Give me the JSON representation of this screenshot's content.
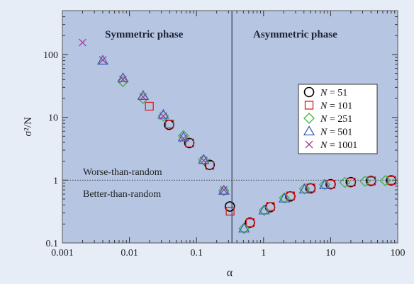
{
  "chart_data": {
    "type": "scatter",
    "xscale": "log",
    "yscale": "log",
    "xlim": [
      0.001,
      100
    ],
    "ylim": [
      0.1,
      500
    ],
    "xticks": [
      "0.001",
      "0.01",
      "0.1",
      "1",
      "10",
      "100"
    ],
    "yticks": [
      "0.1",
      "1",
      "10",
      "100"
    ],
    "xlabel": "α",
    "ylabel": "σ²/N",
    "alpha_c": 0.3374,
    "random_level": 1,
    "phase_labels": {
      "left": "Symmetric phase",
      "right": "Asymmetric phase"
    },
    "annotations": {
      "upper": "Worse-than-random",
      "lower": "Better-than-random"
    },
    "colors": {
      "panel": "#b5c5e2",
      "background": "#e6edf6",
      "accent": "#1b2233"
    },
    "series": [
      {
        "name": "N = 51",
        "marker": "circle",
        "color": "#000000",
        "points": [
          [
            0.039,
            7.6
          ],
          [
            0.078,
            3.9
          ],
          [
            0.157,
            1.75
          ],
          [
            0.314,
            0.38
          ],
          [
            0.627,
            0.21
          ],
          [
            1.25,
            0.37
          ],
          [
            2.5,
            0.55
          ],
          [
            5,
            0.74
          ],
          [
            10,
            0.86
          ],
          [
            20,
            0.93
          ],
          [
            40,
            0.97
          ],
          [
            80,
            0.99
          ]
        ]
      },
      {
        "name": "N = 101",
        "marker": "square",
        "color": "#d62020",
        "points": [
          [
            0.0198,
            15
          ],
          [
            0.0396,
            7.8
          ],
          [
            0.079,
            3.9
          ],
          [
            0.158,
            1.72
          ],
          [
            0.317,
            0.32
          ],
          [
            0.634,
            0.21
          ],
          [
            1.27,
            0.38
          ],
          [
            2.53,
            0.56
          ],
          [
            5.07,
            0.75
          ],
          [
            10.1,
            0.86
          ],
          [
            20.3,
            0.93
          ],
          [
            40.6,
            0.97
          ],
          [
            81.1,
            0.99
          ]
        ]
      },
      {
        "name": "N = 251",
        "marker": "diamond",
        "color": "#3fb23f",
        "points": [
          [
            0.008,
            37
          ],
          [
            0.016,
            20
          ],
          [
            0.032,
            10.5
          ],
          [
            0.064,
            5.1
          ],
          [
            0.127,
            2.1
          ],
          [
            0.255,
            0.68
          ],
          [
            0.51,
            0.17
          ],
          [
            1.02,
            0.33
          ],
          [
            2.04,
            0.52
          ],
          [
            4.08,
            0.73
          ],
          [
            8.16,
            0.85
          ],
          [
            16.3,
            0.92
          ],
          [
            32.6,
            0.96
          ],
          [
            65.3,
            0.98
          ]
        ]
      },
      {
        "name": "N = 501",
        "marker": "triangle",
        "color": "#3d5fb5",
        "points": [
          [
            0.004,
            80
          ],
          [
            0.008,
            42
          ],
          [
            0.016,
            22
          ],
          [
            0.032,
            11
          ],
          [
            0.064,
            4.8
          ],
          [
            0.128,
            2.1
          ],
          [
            0.256,
            0.68
          ],
          [
            0.511,
            0.17
          ],
          [
            1.02,
            0.33
          ],
          [
            2.04,
            0.51
          ],
          [
            4.09,
            0.71
          ],
          [
            8.18,
            0.84
          ]
        ]
      },
      {
        "name": "N = 1001",
        "marker": "cross",
        "color": "#a03b9a",
        "points": [
          [
            0.002,
            155
          ],
          [
            0.004,
            82
          ],
          [
            0.008,
            40
          ],
          [
            0.016,
            21
          ],
          [
            0.032,
            10.5
          ],
          [
            0.064,
            4.6
          ],
          [
            0.128,
            2.05
          ],
          [
            0.256,
            0.7
          ]
        ]
      }
    ]
  }
}
